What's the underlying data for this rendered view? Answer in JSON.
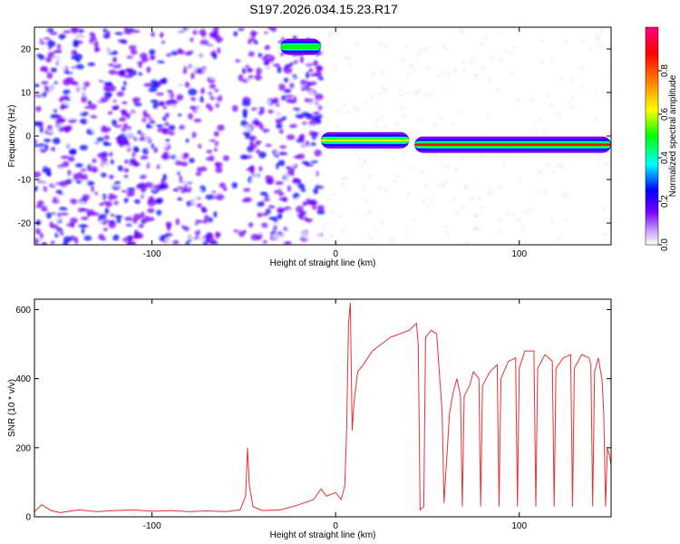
{
  "title": "S197.2026.034.15.23.R17",
  "chart_data": [
    {
      "id": "spectrogram",
      "type": "heatmap",
      "xlabel": "Height of straight line (km)",
      "ylabel": "Frequency (Hz)",
      "xlim": [
        -164,
        150
      ],
      "ylim": [
        -25,
        25
      ],
      "xticks": [
        -100,
        0,
        100
      ],
      "yticks": [
        -20,
        -10,
        0,
        10,
        20
      ],
      "colorbar": {
        "label": "Normalized spectral amplitude",
        "range": [
          0,
          1
        ],
        "ticks": [
          0.0,
          0.2,
          0.4,
          0.6,
          0.8
        ],
        "colormap": [
          "#ffffff",
          "#7a00ff",
          "#0000ff",
          "#00ffff",
          "#00ff00",
          "#ffff00",
          "#ff8000",
          "#ff0000",
          "#ff0080"
        ]
      },
      "carrier_track": [
        {
          "x_start": -30,
          "x_end": -8,
          "frequency": 20.5,
          "amplitude": 0.55
        },
        {
          "x_start": -8,
          "x_end": 40,
          "frequency": -1.0,
          "amplitude": 0.6
        },
        {
          "x_start": 43,
          "x_end": 150,
          "frequency": -2.0,
          "amplitude": 0.85
        }
      ],
      "grid": false
    },
    {
      "id": "snr",
      "type": "line",
      "xlabel": "Height of straight line (km)",
      "ylabel": "SNR (10 * v/v)",
      "xlim": [
        -164,
        150
      ],
      "ylim": [
        0,
        630
      ],
      "xticks": [
        -100,
        0,
        100
      ],
      "yticks": [
        0,
        200,
        400,
        600
      ],
      "color": "#e83030",
      "grid": false,
      "series": [
        {
          "points": [
            [
              -164,
              15
            ],
            [
              -160,
              35
            ],
            [
              -155,
              18
            ],
            [
              -150,
              12
            ],
            [
              -140,
              20
            ],
            [
              -130,
              15
            ],
            [
              -120,
              18
            ],
            [
              -110,
              20
            ],
            [
              -100,
              16
            ],
            [
              -90,
              18
            ],
            [
              -80,
              15
            ],
            [
              -70,
              17
            ],
            [
              -60,
              15
            ],
            [
              -52,
              20
            ],
            [
              -49,
              60
            ],
            [
              -48,
              200
            ],
            [
              -47,
              90
            ],
            [
              -45,
              30
            ],
            [
              -40,
              18
            ],
            [
              -30,
              20
            ],
            [
              -20,
              35
            ],
            [
              -12,
              50
            ],
            [
              -8,
              80
            ],
            [
              -5,
              60
            ],
            [
              0,
              70
            ],
            [
              3,
              50
            ],
            [
              5,
              90
            ],
            [
              6,
              250
            ],
            [
              7,
              560
            ],
            [
              8,
              620
            ],
            [
              9,
              250
            ],
            [
              10,
              330
            ],
            [
              12,
              420
            ],
            [
              15,
              440
            ],
            [
              20,
              480
            ],
            [
              25,
              500
            ],
            [
              30,
              520
            ],
            [
              35,
              530
            ],
            [
              40,
              540
            ],
            [
              44,
              560
            ],
            [
              45,
              500
            ],
            [
              46,
              20
            ],
            [
              48,
              30
            ],
            [
              49,
              520
            ],
            [
              52,
              540
            ],
            [
              55,
              530
            ],
            [
              58,
              300
            ],
            [
              59,
              40
            ],
            [
              62,
              300
            ],
            [
              64,
              360
            ],
            [
              66,
              400
            ],
            [
              68,
              350
            ],
            [
              69,
              30
            ],
            [
              70,
              350
            ],
            [
              73,
              380
            ],
            [
              75,
              420
            ],
            [
              78,
              400
            ],
            [
              79,
              30
            ],
            [
              80,
              380
            ],
            [
              84,
              420
            ],
            [
              88,
              440
            ],
            [
              89,
              30
            ],
            [
              90,
              400
            ],
            [
              94,
              450
            ],
            [
              98,
              460
            ],
            [
              99,
              30
            ],
            [
              100,
              430
            ],
            [
              103,
              480
            ],
            [
              108,
              480
            ],
            [
              109,
              30
            ],
            [
              110,
              430
            ],
            [
              114,
              470
            ],
            [
              118,
              450
            ],
            [
              119,
              30
            ],
            [
              120,
              430
            ],
            [
              124,
              460
            ],
            [
              128,
              470
            ],
            [
              129,
              30
            ],
            [
              130,
              430
            ],
            [
              134,
              470
            ],
            [
              138,
              460
            ],
            [
              139,
              440
            ],
            [
              140,
              30
            ],
            [
              141,
              420
            ],
            [
              143,
              460
            ],
            [
              145,
              400
            ],
            [
              146,
              300
            ],
            [
              147,
              30
            ],
            [
              148,
              200
            ],
            [
              149,
              180
            ],
            [
              150,
              150
            ]
          ]
        }
      ]
    }
  ]
}
